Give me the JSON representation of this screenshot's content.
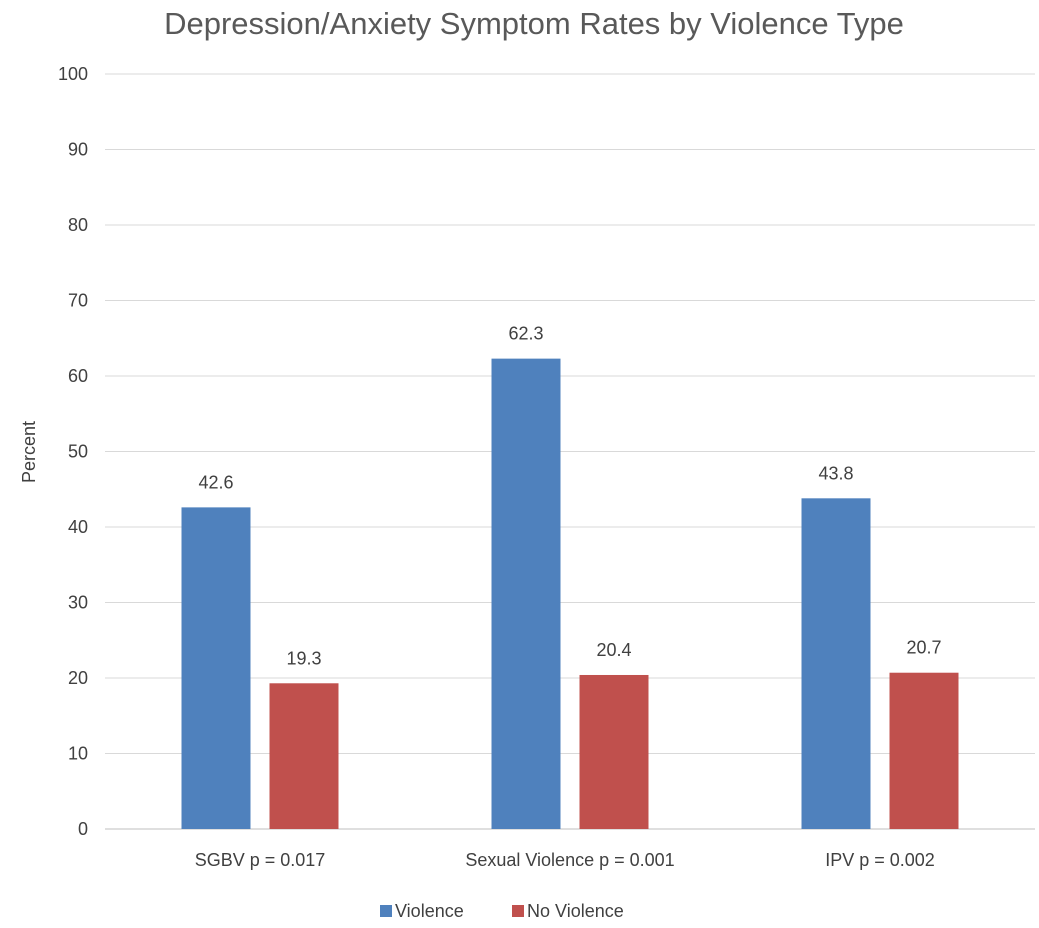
{
  "chart_data": {
    "type": "bar",
    "title": "Depression/Anxiety Symptom Rates by Violence Type",
    "xlabel": "",
    "ylabel": "Percent",
    "ylim": [
      0,
      100
    ],
    "yticks": [
      "0",
      "10",
      "20",
      "30",
      "40",
      "50",
      "60",
      "70",
      "80",
      "90",
      "100"
    ],
    "categories": [
      "SGBV p = 0.017",
      "Sexual Violence p = 0.001",
      "IPV  p = 0.002"
    ],
    "series": [
      {
        "name": "Violence",
        "color": "#4f81bd",
        "values": [
          42.6,
          62.3,
          43.8
        ],
        "labels": [
          "42.6",
          "62.3",
          "43.8"
        ]
      },
      {
        "name": "No Violence",
        "color": "#c0504d",
        "values": [
          19.3,
          20.4,
          20.7
        ],
        "labels": [
          "19.3",
          "20.4",
          "20.7"
        ]
      }
    ],
    "grid": true,
    "legend_position": "bottom"
  }
}
